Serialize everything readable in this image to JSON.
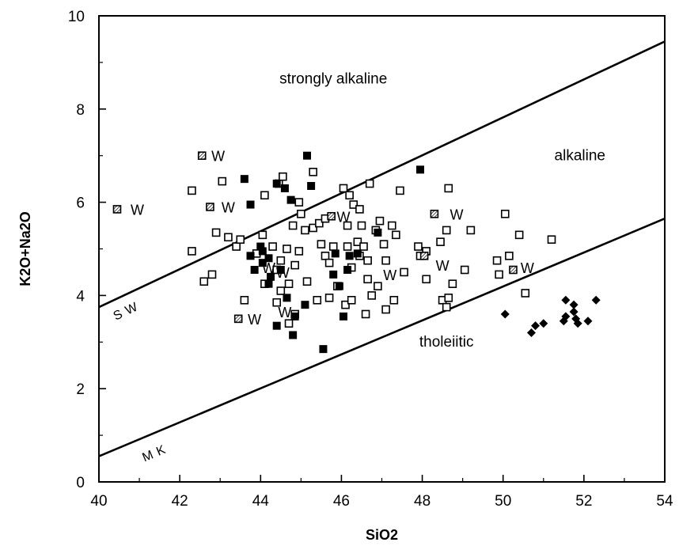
{
  "chart_data": {
    "type": "scatter",
    "title": "",
    "xlabel": "SiO2",
    "ylabel": "K2O+Na2O",
    "xlim": [
      40,
      54
    ],
    "ylim": [
      0,
      10
    ],
    "xticks": [
      "40",
      "42",
      "44",
      "46",
      "48",
      "50",
      "52",
      "54"
    ],
    "yticks": [
      "0",
      "2",
      "4",
      "6",
      "8",
      "10"
    ],
    "grid": false,
    "regions": [
      {
        "label": "strongly alkaline",
        "x": 45.8,
        "y": 8.55
      },
      {
        "label": "alkaline",
        "x": 51.9,
        "y": 6.9
      },
      {
        "label": "tholeiitic",
        "x": 48.6,
        "y": 2.9
      }
    ],
    "boundary_lines": [
      {
        "label": "SW",
        "x": [
          40,
          54
        ],
        "y": [
          3.75,
          9.45
        ],
        "label_at": [
          40.75,
          3.6
        ]
      },
      {
        "label": "MK",
        "x": [
          40,
          54
        ],
        "y": [
          0.55,
          5.65
        ],
        "label_at": [
          41.45,
          0.55
        ]
      }
    ],
    "w_annotations": [
      {
        "text": "W",
        "x": 40.95,
        "y": 5.85
      },
      {
        "text": "W",
        "x": 42.95,
        "y": 7.0
      },
      {
        "text": "W",
        "x": 43.2,
        "y": 5.9
      },
      {
        "text": "W",
        "x": 46.05,
        "y": 5.7
      },
      {
        "text": "W",
        "x": 48.85,
        "y": 5.75
      },
      {
        "text": "W",
        "x": 44.2,
        "y": 4.6
      },
      {
        "text": "W",
        "x": 44.55,
        "y": 4.5
      },
      {
        "text": "W",
        "x": 48.5,
        "y": 4.65
      },
      {
        "text": "W",
        "x": 47.2,
        "y": 4.45
      },
      {
        "text": "W",
        "x": 50.6,
        "y": 4.6
      },
      {
        "text": "W",
        "x": 43.85,
        "y": 3.5
      },
      {
        "text": "W",
        "x": 44.6,
        "y": 3.65
      }
    ],
    "series": [
      {
        "marker": "open-square",
        "points": [
          [
            42.3,
            6.25
          ],
          [
            42.3,
            4.95
          ],
          [
            42.6,
            4.3
          ],
          [
            42.8,
            4.45
          ],
          [
            42.9,
            5.35
          ],
          [
            43.05,
            6.45
          ],
          [
            43.2,
            5.25
          ],
          [
            43.4,
            5.05
          ],
          [
            43.5,
            5.2
          ],
          [
            43.6,
            3.9
          ],
          [
            43.9,
            4.9
          ],
          [
            44.05,
            5.3
          ],
          [
            44.1,
            6.15
          ],
          [
            44.1,
            4.25
          ],
          [
            44.3,
            5.05
          ],
          [
            44.4,
            4.55
          ],
          [
            44.4,
            3.85
          ],
          [
            44.45,
            6.4
          ],
          [
            44.5,
            4.75
          ],
          [
            44.5,
            4.1
          ],
          [
            44.55,
            6.55
          ],
          [
            44.65,
            5.0
          ],
          [
            44.7,
            4.25
          ],
          [
            44.7,
            3.4
          ],
          [
            44.8,
            5.5
          ],
          [
            44.85,
            4.65
          ],
          [
            44.85,
            3.6
          ],
          [
            44.95,
            6.0
          ],
          [
            44.95,
            4.95
          ],
          [
            45.0,
            5.75
          ],
          [
            45.1,
            5.4
          ],
          [
            45.15,
            4.3
          ],
          [
            45.3,
            6.65
          ],
          [
            45.3,
            5.45
          ],
          [
            45.4,
            3.9
          ],
          [
            45.45,
            5.55
          ],
          [
            45.5,
            5.1
          ],
          [
            45.6,
            5.65
          ],
          [
            45.6,
            4.85
          ],
          [
            45.7,
            4.7
          ],
          [
            45.7,
            3.95
          ],
          [
            45.8,
            5.05
          ],
          [
            45.9,
            4.2
          ],
          [
            46.05,
            6.3
          ],
          [
            46.1,
            3.8
          ],
          [
            46.15,
            5.05
          ],
          [
            46.15,
            5.5
          ],
          [
            46.2,
            6.15
          ],
          [
            46.25,
            4.6
          ],
          [
            46.25,
            3.9
          ],
          [
            46.3,
            5.95
          ],
          [
            46.4,
            5.15
          ],
          [
            46.45,
            5.85
          ],
          [
            46.45,
            4.85
          ],
          [
            46.5,
            5.5
          ],
          [
            46.55,
            5.05
          ],
          [
            46.6,
            3.6
          ],
          [
            46.65,
            4.35
          ],
          [
            46.65,
            4.75
          ],
          [
            46.7,
            6.4
          ],
          [
            46.75,
            4.0
          ],
          [
            46.85,
            5.4
          ],
          [
            46.9,
            4.2
          ],
          [
            46.95,
            5.6
          ],
          [
            47.05,
            5.1
          ],
          [
            47.1,
            4.75
          ],
          [
            47.1,
            3.7
          ],
          [
            47.25,
            5.5
          ],
          [
            47.3,
            3.9
          ],
          [
            47.35,
            5.3
          ],
          [
            47.45,
            6.25
          ],
          [
            47.55,
            4.5
          ],
          [
            47.9,
            5.05
          ],
          [
            47.95,
            4.85
          ],
          [
            48.1,
            4.35
          ],
          [
            48.1,
            4.95
          ],
          [
            48.45,
            5.15
          ],
          [
            48.5,
            3.9
          ],
          [
            48.6,
            5.4
          ],
          [
            48.65,
            6.3
          ],
          [
            48.6,
            3.75
          ],
          [
            48.65,
            3.95
          ],
          [
            48.75,
            4.25
          ],
          [
            49.05,
            4.55
          ],
          [
            49.2,
            5.4
          ],
          [
            49.85,
            4.75
          ],
          [
            49.9,
            4.45
          ],
          [
            50.05,
            5.75
          ],
          [
            50.15,
            4.85
          ],
          [
            50.4,
            5.3
          ],
          [
            50.55,
            4.05
          ],
          [
            51.2,
            5.2
          ]
        ]
      },
      {
        "marker": "filled-square",
        "points": [
          [
            43.6,
            6.5
          ],
          [
            43.75,
            5.95
          ],
          [
            43.75,
            4.85
          ],
          [
            43.85,
            4.55
          ],
          [
            44.0,
            5.05
          ],
          [
            44.05,
            4.95
          ],
          [
            44.05,
            4.7
          ],
          [
            44.2,
            4.25
          ],
          [
            44.2,
            4.8
          ],
          [
            44.25,
            4.4
          ],
          [
            44.4,
            6.4
          ],
          [
            44.4,
            3.35
          ],
          [
            44.5,
            4.55
          ],
          [
            44.6,
            6.3
          ],
          [
            44.65,
            3.95
          ],
          [
            44.75,
            6.05
          ],
          [
            44.8,
            3.15
          ],
          [
            44.85,
            3.55
          ],
          [
            45.1,
            3.8
          ],
          [
            45.15,
            7.0
          ],
          [
            45.25,
            6.35
          ],
          [
            45.55,
            2.85
          ],
          [
            45.8,
            4.45
          ],
          [
            45.85,
            4.9
          ],
          [
            45.95,
            4.2
          ],
          [
            46.05,
            3.55
          ],
          [
            46.15,
            4.55
          ],
          [
            46.2,
            4.85
          ],
          [
            46.4,
            4.9
          ],
          [
            46.9,
            5.35
          ],
          [
            47.95,
            6.7
          ]
        ]
      },
      {
        "marker": "hatched-square",
        "points": [
          [
            40.45,
            5.85
          ],
          [
            42.55,
            7.0
          ],
          [
            42.75,
            5.9
          ],
          [
            45.75,
            5.7
          ],
          [
            48.3,
            5.75
          ],
          [
            43.45,
            3.5
          ],
          [
            48.05,
            4.85
          ],
          [
            50.25,
            4.55
          ]
        ]
      },
      {
        "marker": "filled-diamond",
        "points": [
          [
            50.05,
            3.6
          ],
          [
            50.7,
            3.2
          ],
          [
            50.8,
            3.35
          ],
          [
            51.0,
            3.4
          ],
          [
            51.5,
            3.45
          ],
          [
            51.55,
            3.9
          ],
          [
            51.55,
            3.55
          ],
          [
            51.75,
            3.8
          ],
          [
            51.75,
            3.65
          ],
          [
            51.85,
            3.4
          ],
          [
            51.8,
            3.5
          ],
          [
            52.1,
            3.45
          ],
          [
            52.3,
            3.9
          ]
        ]
      }
    ]
  }
}
